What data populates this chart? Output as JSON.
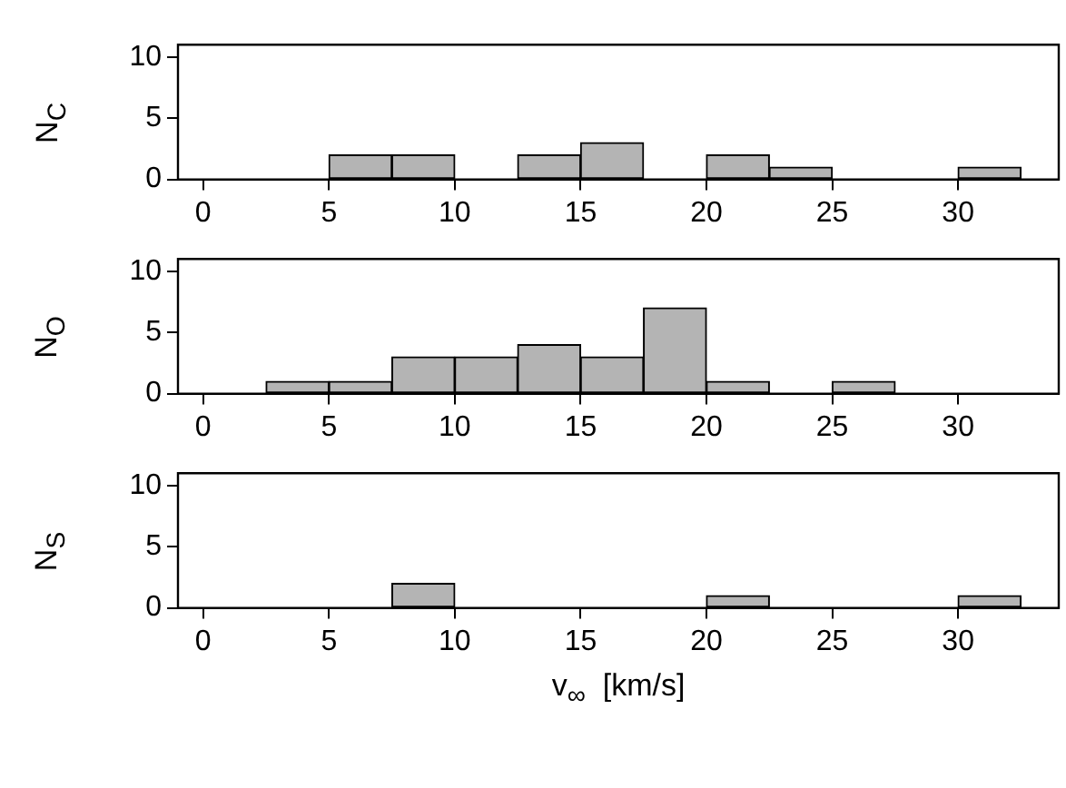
{
  "chart_data": [
    {
      "type": "histogram",
      "ylabel": "N$_{C}$",
      "bins": [
        0,
        2.5,
        5,
        7.5,
        10,
        12.5,
        15,
        17.5,
        20,
        22.5,
        25,
        27.5,
        30,
        32.5
      ],
      "values": [
        0,
        0,
        2,
        2,
        0,
        2,
        3,
        0,
        2,
        1,
        0,
        0,
        1
      ],
      "color": "#b4b4b4",
      "xlim": [
        -1,
        34
      ],
      "xticks": [
        0,
        5,
        10,
        15,
        20,
        25,
        30
      ],
      "ylim": [
        0,
        11
      ],
      "yticks": [
        0,
        5,
        10
      ]
    },
    {
      "type": "histogram",
      "ylabel": "N$_{O}$",
      "bins": [
        0,
        2.5,
        5,
        7.5,
        10,
        12.5,
        15,
        17.5,
        20,
        22.5,
        25,
        27.5,
        30,
        32.5
      ],
      "values": [
        0,
        1,
        1,
        3,
        3,
        4,
        3,
        7,
        1,
        0,
        1,
        0,
        0
      ],
      "color": "#b4b4b4",
      "xlim": [
        -1,
        34
      ],
      "xticks": [
        0,
        5,
        10,
        15,
        20,
        25,
        30
      ],
      "ylim": [
        0,
        11
      ],
      "yticks": [
        0,
        5,
        10
      ]
    },
    {
      "type": "histogram",
      "ylabel": "N$_{S}$",
      "xlabel": "v$_{∞}$  [km/s]",
      "bins": [
        0,
        2.5,
        5,
        7.5,
        10,
        12.5,
        15,
        17.5,
        20,
        22.5,
        25,
        27.5,
        30,
        32.5
      ],
      "values": [
        0,
        0,
        0,
        2,
        0,
        0,
        0,
        0,
        1,
        0,
        0,
        0,
        1
      ],
      "color": "#b4b4b4",
      "xlim": [
        -1,
        34
      ],
      "xticks": [
        0,
        5,
        10,
        15,
        20,
        25,
        30
      ],
      "ylim": [
        0,
        11
      ],
      "yticks": [
        0,
        5,
        10
      ]
    }
  ]
}
